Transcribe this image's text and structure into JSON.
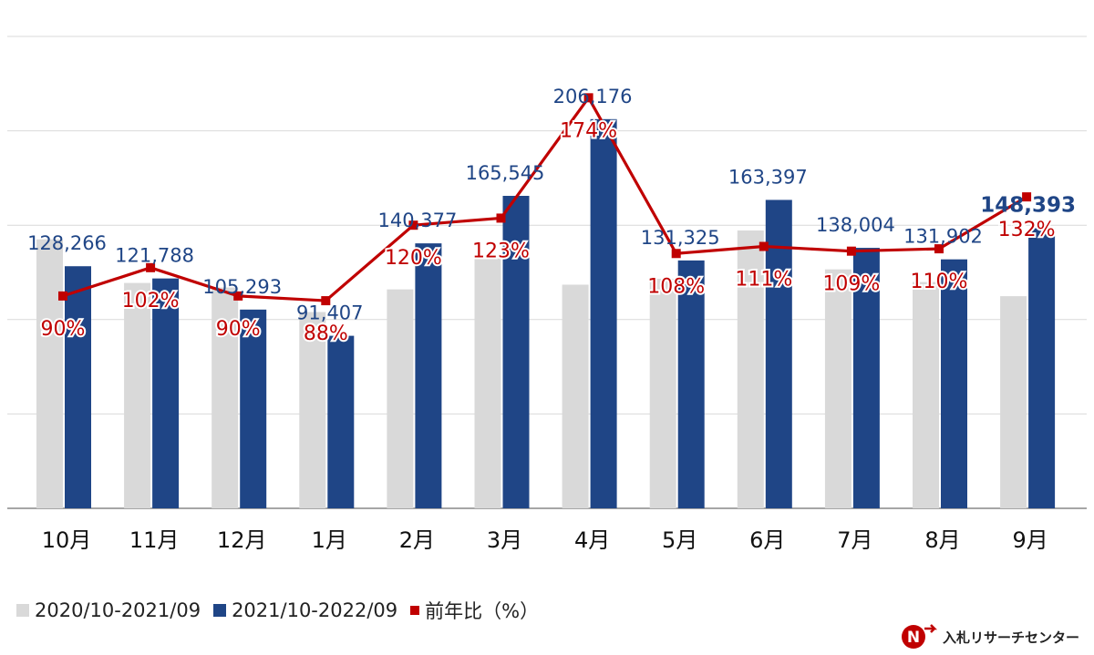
{
  "chart_data": {
    "type": "bar",
    "categories": [
      "10月",
      "11月",
      "12月",
      "1月",
      "2月",
      "3月",
      "4月",
      "5月",
      "6月",
      "7月",
      "8月",
      "9月"
    ],
    "series": [
      {
        "name": "2020/10-2021/09",
        "color": "#d9d9d9",
        "values": [
          142500,
          119400,
          117000,
          104000,
          116000,
          134600,
          118500,
          121600,
          147200,
          126600,
          119900,
          112400
        ]
      },
      {
        "name": "2021/10-2022/09",
        "color": "#1f4586",
        "values": [
          128266,
          121788,
          105293,
          91407,
          140377,
          165545,
          206176,
          131325,
          163397,
          138004,
          131902,
          148393
        ],
        "labels": [
          "128,266",
          "121,788",
          "105,293",
          "91,407",
          "140,377",
          "165,545",
          "206,176",
          "131,325",
          "163,397",
          "138,004",
          "131,902",
          "148,393"
        ]
      },
      {
        "name": "前年比（%）",
        "type": "line",
        "color": "#c00000",
        "values": [
          90,
          102,
          90,
          88,
          120,
          123,
          174,
          108,
          111,
          109,
          110,
          132
        ],
        "labels": [
          "90%",
          "102%",
          "90%",
          "88%",
          "120%",
          "123%",
          "174%",
          "108%",
          "111%",
          "109%",
          "110%",
          "132%"
        ]
      }
    ],
    "ylim": [
      0,
      250000
    ],
    "y2lim": [
      0,
      200
    ],
    "grid": true,
    "legend": "bottom-left"
  },
  "legend": {
    "items": [
      {
        "label": "2020/10-2021/09",
        "color": "#d9d9d9"
      },
      {
        "label": "2021/10-2022/09",
        "color": "#1f4586"
      },
      {
        "label": "前年比（%）",
        "color": "#c00000"
      }
    ]
  },
  "brand": {
    "logo_letter": "N",
    "name": "入札リサーチセンター"
  }
}
